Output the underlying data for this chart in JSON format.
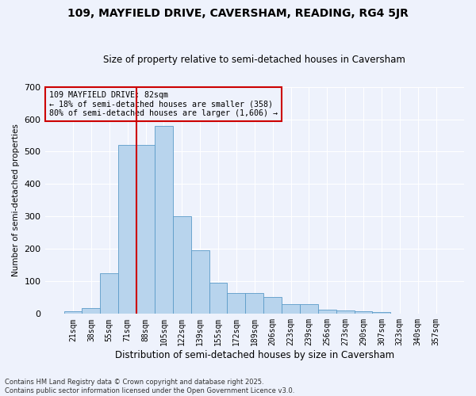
{
  "title": "109, MAYFIELD DRIVE, CAVERSHAM, READING, RG4 5JR",
  "subtitle": "Size of property relative to semi-detached houses in Caversham",
  "xlabel": "Distribution of semi-detached houses by size in Caversham",
  "ylabel": "Number of semi-detached properties",
  "categories": [
    "21sqm",
    "38sqm",
    "55sqm",
    "71sqm",
    "88sqm",
    "105sqm",
    "122sqm",
    "139sqm",
    "155sqm",
    "172sqm",
    "189sqm",
    "206sqm",
    "223sqm",
    "239sqm",
    "256sqm",
    "273sqm",
    "290sqm",
    "307sqm",
    "323sqm",
    "340sqm",
    "357sqm"
  ],
  "values": [
    8,
    18,
    125,
    520,
    520,
    580,
    300,
    197,
    97,
    65,
    65,
    52,
    30,
    30,
    12,
    10,
    8,
    5,
    0,
    0,
    0
  ],
  "bar_color": "#b8d4ed",
  "bar_edge_color": "#5b9bc8",
  "vline_color": "#cc0000",
  "annotation_title": "109 MAYFIELD DRIVE: 82sqm",
  "annotation_line1": "← 18% of semi-detached houses are smaller (358)",
  "annotation_line2": "80% of semi-detached houses are larger (1,606) →",
  "annotation_box_color": "#cc0000",
  "ylim": [
    0,
    700
  ],
  "yticks": [
    0,
    100,
    200,
    300,
    400,
    500,
    600,
    700
  ],
  "footer_line1": "Contains HM Land Registry data © Crown copyright and database right 2025.",
  "footer_line2": "Contains public sector information licensed under the Open Government Licence v3.0.",
  "bg_color": "#eef2fc",
  "grid_color": "#ffffff"
}
